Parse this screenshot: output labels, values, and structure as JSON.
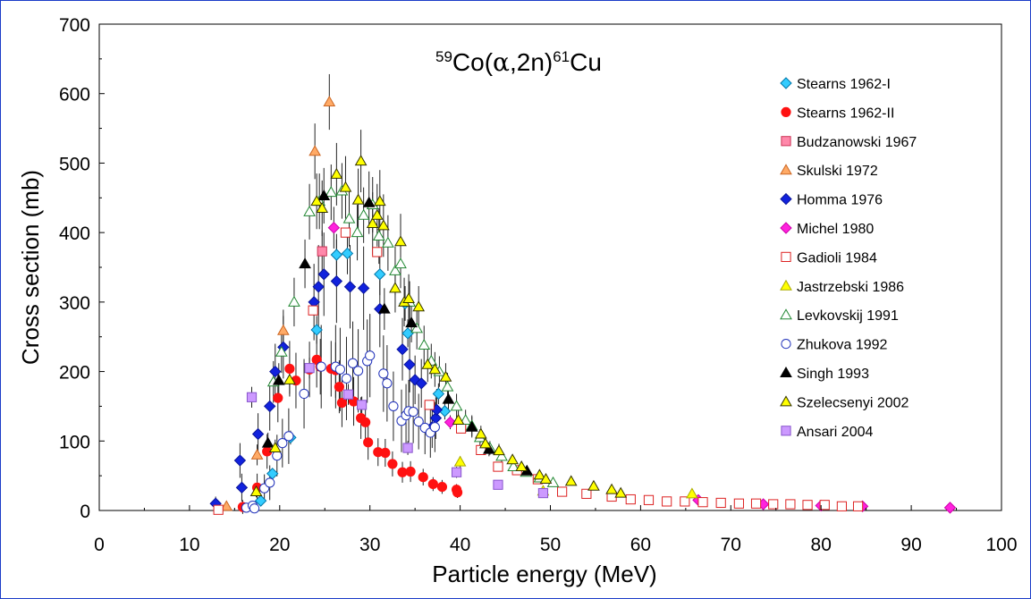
{
  "chart_data": {
    "type": "scatter",
    "title": {
      "mass_number": "59",
      "target": "Co(",
      "alpha": "α",
      "channel": ",2n)",
      "product_mass": "61",
      "product": "Cu"
    },
    "xlabel": "Particle energy (MeV)",
    "ylabel": "Cross section (mb)",
    "xlim": [
      0,
      100
    ],
    "ylim": [
      0,
      700
    ],
    "xticks": [
      "0",
      "10",
      "20",
      "30",
      "40",
      "50",
      "60",
      "70",
      "80",
      "90",
      "100"
    ],
    "yticks": [
      "0",
      "100",
      "200",
      "300",
      "400",
      "500",
      "600",
      "700"
    ],
    "grid": false,
    "legend_position": "right",
    "series": [
      {
        "name": "Stearns 1962-I",
        "marker": "diamond",
        "color": "#33ccff",
        "stroke": "#0077aa",
        "filled": true,
        "points": [
          [
            17.9,
            14
          ],
          [
            19.2,
            53
          ],
          [
            21.2,
            105
          ],
          [
            24.1,
            260
          ],
          [
            26.3,
            368
          ],
          [
            27.5,
            370
          ],
          [
            31.1,
            340
          ],
          [
            33.9,
            298
          ],
          [
            34.2,
            255
          ],
          [
            37.6,
            168
          ],
          [
            38.3,
            143
          ]
        ],
        "errors": [
          5,
          8,
          10,
          20,
          30,
          30,
          30,
          25,
          20,
          15,
          12
        ]
      },
      {
        "name": "Stearns 1962-II",
        "marker": "circle",
        "color": "#ff1111",
        "stroke": "#ff1111",
        "filled": true,
        "points": [
          [
            15.9,
            5
          ],
          [
            17.5,
            33
          ],
          [
            18.6,
            85
          ],
          [
            19.8,
            162
          ],
          [
            21.1,
            204
          ],
          [
            21.8,
            187
          ],
          [
            23.3,
            203
          ],
          [
            24.1,
            217
          ],
          [
            24.5,
            207
          ],
          [
            25.7,
            204
          ],
          [
            26.2,
            202
          ],
          [
            26.6,
            178
          ],
          [
            26.9,
            155
          ],
          [
            28.2,
            157
          ],
          [
            29.0,
            133
          ],
          [
            29.5,
            127
          ],
          [
            29.8,
            98
          ],
          [
            30.9,
            84
          ],
          [
            31.7,
            83
          ],
          [
            32.5,
            67
          ],
          [
            33.6,
            55
          ],
          [
            34.5,
            56
          ],
          [
            35.9,
            48
          ],
          [
            37.0,
            38
          ],
          [
            38.0,
            34
          ],
          [
            39.6,
            30
          ],
          [
            39.7,
            26
          ]
        ],
        "errors": [
          10,
          20,
          25,
          35,
          40,
          40,
          40,
          40,
          40,
          40,
          40,
          38,
          35,
          35,
          30,
          30,
          25,
          20,
          20,
          18,
          15,
          15,
          12,
          10,
          10,
          8,
          8
        ]
      },
      {
        "name": "Budzanowski 1967",
        "marker": "square",
        "color": "#ff88aa",
        "stroke": "#cc3355",
        "filled": true,
        "points": [
          [
            24.7,
            373
          ]
        ],
        "errors": [
          30
        ]
      },
      {
        "name": "Skulski 1972",
        "marker": "triangle",
        "color": "#ffaa66",
        "stroke": "#cc6622",
        "filled": true,
        "points": [
          [
            14.1,
            6
          ],
          [
            17.5,
            80
          ],
          [
            20.4,
            259
          ],
          [
            23.9,
            517
          ],
          [
            25.5,
            588
          ]
        ],
        "errors": [
          5,
          15,
          30,
          40,
          40
        ]
      },
      {
        "name": "Homma 1976",
        "marker": "diamond",
        "color": "#1122dd",
        "stroke": "#0a1599",
        "filled": true,
        "points": [
          [
            12.9,
            10
          ],
          [
            15.6,
            72
          ],
          [
            15.8,
            33
          ],
          [
            17.6,
            110
          ],
          [
            18.9,
            150
          ],
          [
            19.5,
            200
          ],
          [
            20.4,
            235
          ],
          [
            23.8,
            300
          ],
          [
            24.3,
            322
          ],
          [
            24.9,
            340
          ],
          [
            26.3,
            330
          ],
          [
            27.8,
            322
          ],
          [
            29.3,
            320
          ],
          [
            31.1,
            290
          ],
          [
            33.6,
            232
          ],
          [
            34.4,
            210
          ],
          [
            35.0,
            188
          ],
          [
            35.7,
            183
          ],
          [
            36.9,
            120
          ],
          [
            37.3,
            133
          ],
          [
            37.4,
            145
          ]
        ],
        "errors": [
          10,
          25,
          20,
          30,
          35,
          40,
          45,
          55,
          60,
          60,
          60,
          60,
          60,
          55,
          45,
          40,
          35,
          35,
          30,
          30,
          30
        ]
      },
      {
        "name": "Michel 1980",
        "marker": "diamond",
        "color": "#ff22dd",
        "stroke": "#cc00aa",
        "filled": true,
        "points": [
          [
            26.0,
            407
          ],
          [
            38.9,
            127
          ],
          [
            66.4,
            15
          ],
          [
            73.6,
            9
          ],
          [
            80.0,
            7
          ],
          [
            84.6,
            6
          ],
          [
            94.3,
            4
          ]
        ],
        "errors": [
          30,
          10,
          2,
          2,
          2,
          2,
          2
        ]
      },
      {
        "name": "Gadioli 1984",
        "marker": "square",
        "color": "#ffffff",
        "stroke": "#dd2222",
        "filled": false,
        "points": [
          [
            13.2,
            1
          ],
          [
            23.7,
            288
          ],
          [
            27.3,
            400
          ],
          [
            30.8,
            372
          ],
          [
            36.6,
            152
          ],
          [
            40.1,
            118
          ],
          [
            42.3,
            87
          ],
          [
            44.2,
            63
          ],
          [
            46.3,
            58
          ],
          [
            48.6,
            45
          ],
          [
            51.3,
            27
          ],
          [
            54.0,
            24
          ],
          [
            56.8,
            20
          ],
          [
            58.9,
            16
          ],
          [
            60.9,
            15
          ],
          [
            62.9,
            13
          ],
          [
            64.9,
            13
          ],
          [
            66.9,
            12
          ],
          [
            68.9,
            11
          ],
          [
            70.9,
            10
          ],
          [
            72.8,
            10
          ],
          [
            74.7,
            9
          ],
          [
            76.6,
            9
          ],
          [
            78.5,
            8
          ],
          [
            80.4,
            8
          ],
          [
            82.3,
            6
          ],
          [
            84.1,
            6
          ]
        ],
        "errors": [
          0,
          0,
          0,
          0,
          0,
          0,
          0,
          0,
          0,
          0,
          0,
          0,
          0,
          0,
          0,
          0,
          0,
          0,
          0,
          0,
          0,
          0,
          0,
          0,
          0,
          0,
          0
        ]
      },
      {
        "name": "Jastrzebski 1986",
        "marker": "triangle",
        "color": "#ffff00",
        "stroke": "#aaaa00",
        "filled": true,
        "points": [
          [
            40.0,
            70
          ],
          [
            49.2,
            28
          ],
          [
            65.7,
            24
          ]
        ],
        "errors": [
          8,
          4,
          4
        ]
      },
      {
        "name": "Levkovskij 1991",
        "marker": "triangle",
        "color": "#ffffff",
        "stroke": "#228833",
        "filled": false,
        "points": [
          [
            19.3,
            185
          ],
          [
            20.2,
            228
          ],
          [
            21.6,
            300
          ],
          [
            23.3,
            430
          ],
          [
            24.4,
            445
          ],
          [
            25.7,
            458
          ],
          [
            26.9,
            460
          ],
          [
            27.7,
            420
          ],
          [
            28.6,
            400
          ],
          [
            29.3,
            425
          ],
          [
            30.3,
            440
          ],
          [
            31.0,
            395
          ],
          [
            32.0,
            385
          ],
          [
            32.8,
            345
          ],
          [
            33.4,
            355
          ],
          [
            34.4,
            300
          ],
          [
            35.2,
            262
          ],
          [
            36.0,
            238
          ],
          [
            36.8,
            215
          ],
          [
            37.7,
            200
          ],
          [
            38.6,
            178
          ],
          [
            39.6,
            150
          ],
          [
            40.6,
            130
          ],
          [
            41.3,
            122
          ],
          [
            42.2,
            105
          ],
          [
            43.3,
            90
          ],
          [
            44.6,
            78
          ],
          [
            45.9,
            63
          ],
          [
            47.3,
            55
          ],
          [
            48.8,
            47
          ],
          [
            50.3,
            40
          ]
        ],
        "errors": [
          30,
          30,
          35,
          40,
          40,
          40,
          40,
          40,
          40,
          40,
          40,
          40,
          40,
          35,
          35,
          30,
          30,
          28,
          25,
          22,
          20,
          18,
          15,
          15,
          12,
          10,
          8,
          8,
          6,
          5,
          5
        ]
      },
      {
        "name": "Zhukova 1992",
        "marker": "circle",
        "color": "#ffffff",
        "stroke": "#2233bb",
        "filled": false,
        "points": [
          [
            16.3,
            4
          ],
          [
            17.0,
            7
          ],
          [
            17.2,
            3
          ],
          [
            18.3,
            32
          ],
          [
            18.9,
            40
          ],
          [
            19.7,
            79
          ],
          [
            20.3,
            97
          ],
          [
            21.0,
            107
          ],
          [
            22.7,
            168
          ],
          [
            24.6,
            207
          ],
          [
            26.2,
            207
          ],
          [
            26.7,
            203
          ],
          [
            27.4,
            190
          ],
          [
            28.1,
            212
          ],
          [
            28.7,
            201
          ],
          [
            29.7,
            215
          ],
          [
            30.0,
            223
          ],
          [
            31.5,
            197
          ],
          [
            31.9,
            183
          ],
          [
            32.6,
            150
          ],
          [
            33.5,
            129
          ],
          [
            34.0,
            137
          ],
          [
            34.3,
            143
          ],
          [
            34.8,
            142
          ],
          [
            35.4,
            128
          ],
          [
            36.1,
            119
          ],
          [
            36.7,
            112
          ],
          [
            37.2,
            120
          ]
        ],
        "errors": [
          5,
          5,
          5,
          20,
          25,
          30,
          35,
          40,
          50,
          60,
          60,
          60,
          60,
          60,
          60,
          60,
          60,
          55,
          55,
          50,
          45,
          45,
          45,
          45,
          40,
          38,
          36,
          36
        ]
      },
      {
        "name": "Singh 1993",
        "marker": "triangle",
        "color": "#000000",
        "stroke": "#000000",
        "filled": true,
        "points": [
          [
            18.7,
            97
          ],
          [
            19.9,
            187
          ],
          [
            22.8,
            355
          ],
          [
            24.9,
            453
          ],
          [
            29.9,
            443
          ],
          [
            31.6,
            290
          ],
          [
            34.6,
            270
          ],
          [
            38.7,
            160
          ],
          [
            41.3,
            120
          ],
          [
            43.2,
            88
          ],
          [
            47.4,
            57
          ]
        ],
        "errors": [
          15,
          25,
          35,
          40,
          45,
          30,
          28,
          20,
          15,
          10,
          8
        ]
      },
      {
        "name": "Szelecsenyi 2002",
        "marker": "triangle",
        "color": "#ffff00",
        "stroke": "#333300",
        "filled": true,
        "points": [
          [
            17.4,
            27
          ],
          [
            19.5,
            90
          ],
          [
            21.1,
            188
          ],
          [
            24.1,
            445
          ],
          [
            24.7,
            435
          ],
          [
            26.3,
            484
          ],
          [
            27.3,
            465
          ],
          [
            28.7,
            447
          ],
          [
            29.0,
            503
          ],
          [
            30.3,
            413
          ],
          [
            30.8,
            425
          ],
          [
            31.1,
            445
          ],
          [
            31.5,
            410
          ],
          [
            32.8,
            320
          ],
          [
            33.4,
            387
          ],
          [
            33.8,
            300
          ],
          [
            34.3,
            305
          ],
          [
            35.4,
            293
          ],
          [
            36.4,
            210
          ],
          [
            37.2,
            203
          ],
          [
            38.4,
            192
          ],
          [
            39.8,
            130
          ],
          [
            42.3,
            110
          ],
          [
            42.8,
            96
          ],
          [
            44.3,
            86
          ],
          [
            45.8,
            73
          ],
          [
            46.8,
            63
          ],
          [
            48.8,
            51
          ],
          [
            49.5,
            45
          ],
          [
            52.3,
            42
          ],
          [
            54.8,
            35
          ],
          [
            56.8,
            30
          ],
          [
            57.8,
            25
          ]
        ],
        "errors": [
          8,
          12,
          20,
          40,
          40,
          45,
          45,
          45,
          45,
          45,
          45,
          45,
          45,
          35,
          40,
          35,
          35,
          30,
          25,
          25,
          20,
          15,
          12,
          10,
          10,
          8,
          8,
          6,
          6,
          5,
          5,
          5,
          4
        ]
      },
      {
        "name": "Ansari 2004",
        "marker": "square",
        "color": "#cc99ff",
        "stroke": "#8855cc",
        "filled": true,
        "points": [
          [
            16.9,
            163
          ],
          [
            23.3,
            205
          ],
          [
            27.6,
            167
          ],
          [
            29.1,
            152
          ],
          [
            34.2,
            90
          ],
          [
            39.6,
            55
          ],
          [
            44.2,
            37
          ],
          [
            49.2,
            25
          ]
        ],
        "errors": [
          15,
          15,
          15,
          12,
          10,
          8,
          5,
          4
        ]
      }
    ]
  }
}
